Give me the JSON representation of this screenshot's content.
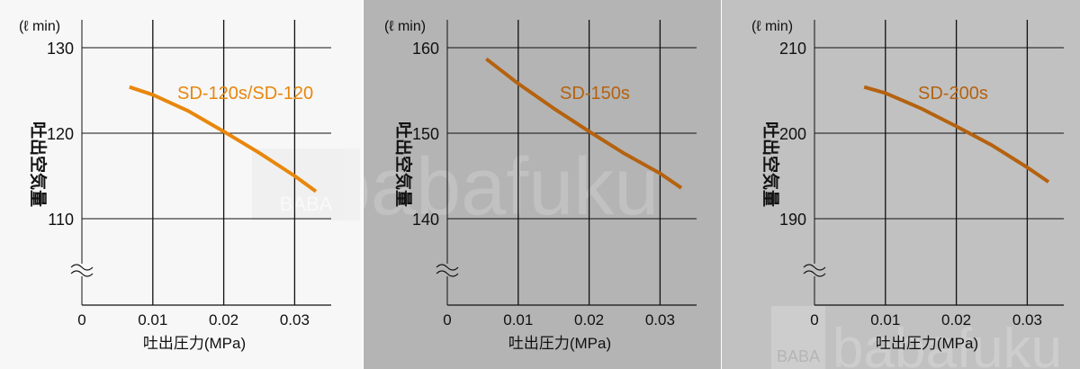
{
  "watermark": {
    "logo": "BABA",
    "text": "babafuku"
  },
  "chart_data": [
    {
      "type": "line",
      "unit_label": "(ℓ min)",
      "ylabel": "吐出空気量",
      "xlabel": "吐出圧力(MPa)",
      "xlim": [
        0,
        0.035
      ],
      "ylim": [
        100,
        133
      ],
      "xticks": [
        "0",
        "0.01",
        "0.02",
        "0.03"
      ],
      "yticks": [
        "130",
        "120",
        "110"
      ],
      "axis_break": true,
      "grid": true,
      "series": [
        {
          "name": "SD-120s/SD-120",
          "x": [
            0.0067,
            0.01,
            0.015,
            0.02,
            0.025,
            0.03,
            0.033
          ],
          "y": [
            125.4,
            124.5,
            122.6,
            120.2,
            117.7,
            115.0,
            113.2
          ]
        }
      ],
      "colors": {
        "line": "#e8870c",
        "label": "#e8870c",
        "background": "#f7f7f7"
      }
    },
    {
      "type": "line",
      "unit_label": "(ℓ min)",
      "ylabel": "吐出空気量",
      "xlabel": "吐出圧力(MPa)",
      "xlim": [
        0,
        0.035
      ],
      "ylim": [
        130,
        163
      ],
      "xticks": [
        "0",
        "0.01",
        "0.02",
        "0.03"
      ],
      "yticks": [
        "160",
        "150",
        "140"
      ],
      "axis_break": true,
      "grid": true,
      "series": [
        {
          "name": "SD-150s",
          "x": [
            0.0055,
            0.01,
            0.015,
            0.02,
            0.025,
            0.03,
            0.033
          ],
          "y": [
            158.7,
            155.8,
            152.9,
            150.2,
            147.6,
            145.3,
            143.6
          ]
        }
      ],
      "colors": {
        "line": "#b5620f",
        "label": "#b5620f",
        "background": "#b4b4b4"
      }
    },
    {
      "type": "line",
      "unit_label": "(ℓ min)",
      "ylabel": "吐出空気量",
      "xlabel": "吐出圧力(MPa)",
      "xlim": [
        0,
        0.035
      ],
      "ylim": [
        180,
        213
      ],
      "xticks": [
        "0",
        "0.01",
        "0.02",
        "0.03"
      ],
      "yticks": [
        "210",
        "200",
        "190"
      ],
      "axis_break": true,
      "grid": true,
      "series": [
        {
          "name": "SD-200s",
          "x": [
            0.007,
            0.01,
            0.015,
            0.02,
            0.025,
            0.03,
            0.033
          ],
          "y": [
            205.4,
            204.7,
            202.9,
            200.8,
            198.6,
            196.0,
            194.3
          ]
        }
      ],
      "colors": {
        "line": "#b5620f",
        "label": "#b5620f",
        "background": "#c1c1c1"
      }
    }
  ]
}
